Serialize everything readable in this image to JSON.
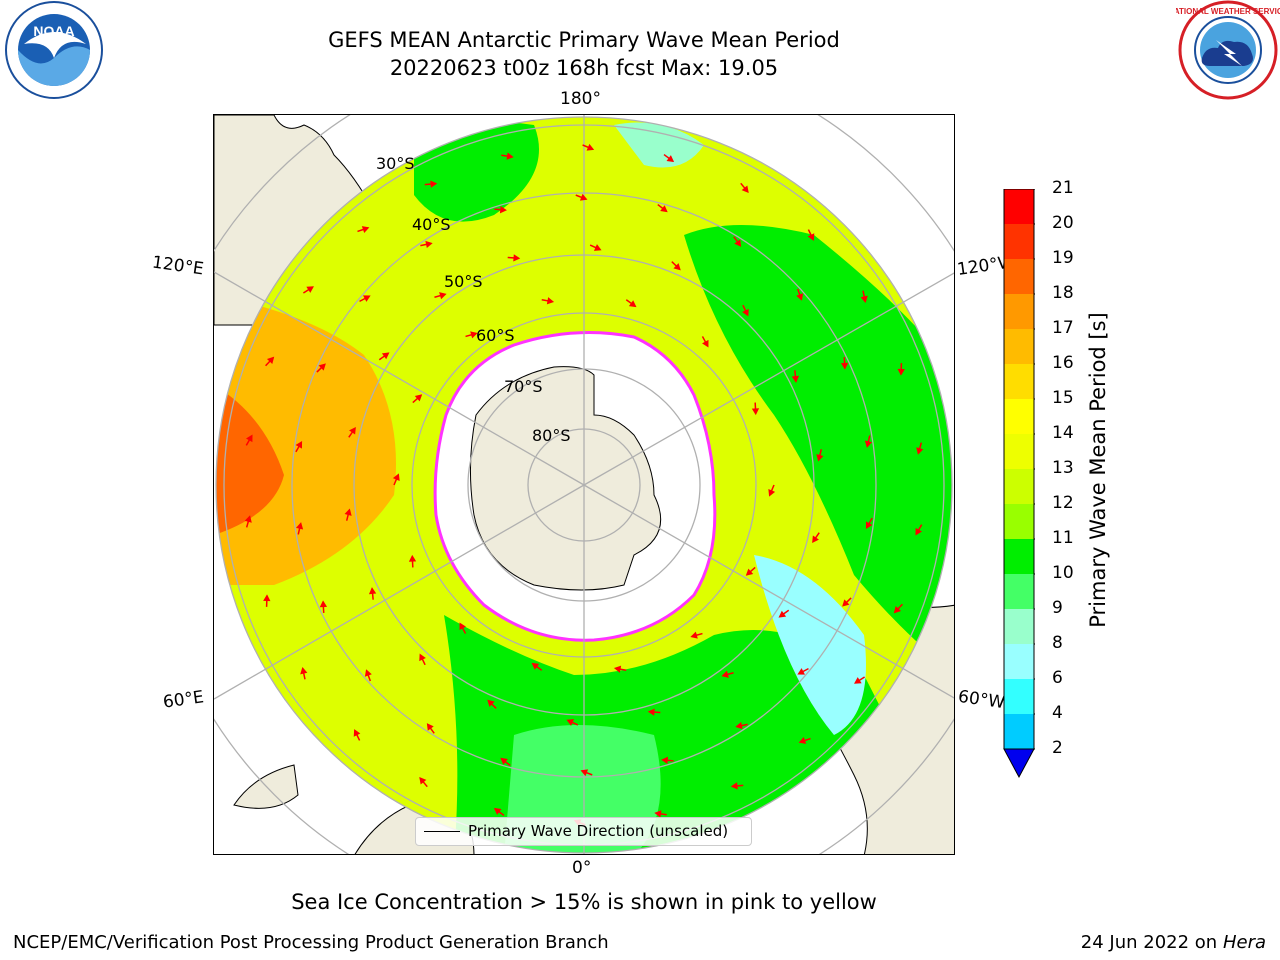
{
  "header": {
    "title_line1": "GEFS MEAN Antarctic Primary Wave Mean Period",
    "title_line2": "20220623 t00z 168h fcst   Max: 19.05"
  },
  "map": {
    "projection": "south-polar-stereographic",
    "longitude_labels": {
      "top": "180°",
      "bottom": "0°",
      "upper_left": "120°E",
      "upper_right": "120°W",
      "lower_left": "60°E",
      "lower_right": "60°W"
    },
    "latitude_labels": [
      "30°S",
      "40°S",
      "50°S",
      "60°S",
      "70°S",
      "80°S"
    ],
    "colors": {
      "land": "#efecdc",
      "ice_shelf": "#ffffff",
      "sea_ice_edge": "#ff33ff",
      "arrow": "#ff0000",
      "grid": "#b0b0b0"
    }
  },
  "colorbar": {
    "label": "Primary Wave Mean Period [s]",
    "ticks": [
      "21",
      "20",
      "19",
      "18",
      "17",
      "16",
      "15",
      "14",
      "13",
      "12",
      "11",
      "10",
      "9",
      "8",
      "6",
      "4",
      "2"
    ],
    "colors": [
      "#ff0000",
      "#ff3300",
      "#ff6600",
      "#ff9900",
      "#ffbb00",
      "#ffdd00",
      "#ffff00",
      "#eeff00",
      "#ccff00",
      "#99ff00",
      "#00ee00",
      "#44ff66",
      "#99ffcc",
      "#99ffff",
      "#33ffff",
      "#00ccff",
      "#0066ff"
    ],
    "extend_color": "#0000ee"
  },
  "legend": {
    "label": "Primary Wave Direction (unscaled)"
  },
  "notes": {
    "sea_ice": "Sea Ice Concentration > 15% is shown in pink to yellow"
  },
  "footer": {
    "left": "NCEP/EMC/Verification Post Processing Product Generation Branch",
    "date": "24 Jun 2022 on",
    "machine": "Hera"
  },
  "logos": {
    "noaa": "NOAA",
    "nws_text": "NATIONAL WEATHER SERVICE"
  }
}
